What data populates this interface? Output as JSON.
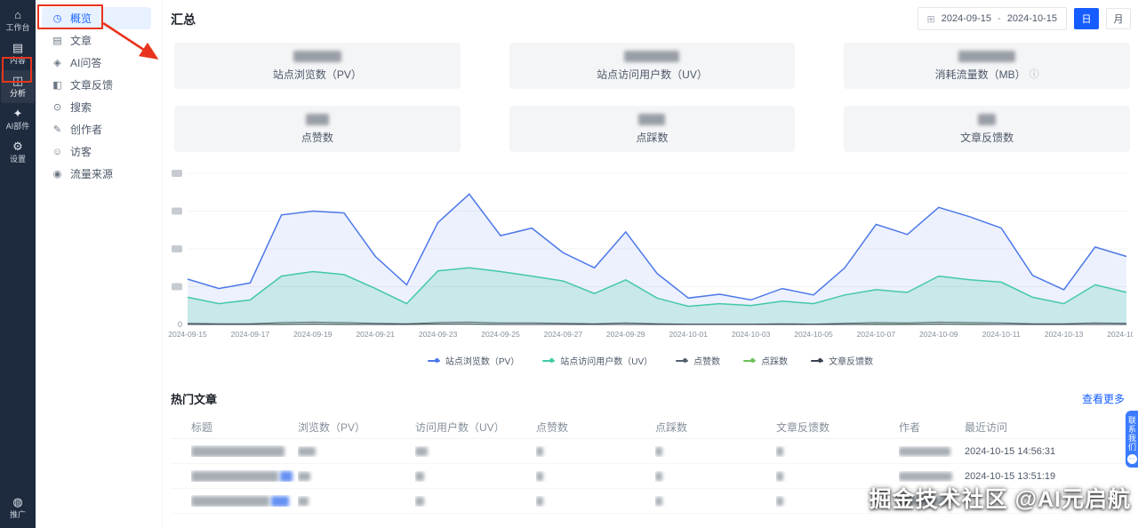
{
  "colors": {
    "accent": "#165dff",
    "annotation": "#e8341c",
    "rail_bg": "#1e2a3d",
    "card_bg": "#f4f5f7"
  },
  "left_rail": {
    "items": [
      {
        "label": "工作台",
        "icon": "workbench-icon"
      },
      {
        "label": "内容",
        "icon": "content-icon"
      },
      {
        "label": "分析",
        "icon": "analysis-icon"
      },
      {
        "label": "AI部件",
        "icon": "ai-parts-icon"
      },
      {
        "label": "设置",
        "icon": "settings-icon"
      }
    ],
    "bottom": {
      "label": "推广",
      "icon": "promotion-icon"
    }
  },
  "sidebar": {
    "items": [
      {
        "label": "概览",
        "icon": "overview-icon"
      },
      {
        "label": "文章",
        "icon": "article-icon"
      },
      {
        "label": "AI问答",
        "icon": "ai-qa-icon"
      },
      {
        "label": "文章反馈",
        "icon": "feedback-icon"
      },
      {
        "label": "搜索",
        "icon": "search-icon"
      },
      {
        "label": "创作者",
        "icon": "creator-icon"
      },
      {
        "label": "访客",
        "icon": "visitor-icon"
      },
      {
        "label": "流量来源",
        "icon": "traffic-source-icon"
      }
    ]
  },
  "header": {
    "title": "汇总",
    "date_start": "2024-09-15",
    "range_sep": "-",
    "date_end": "2024-10-15",
    "day_label": "日",
    "month_label": "月"
  },
  "stat_cards": [
    {
      "label": "站点浏览数（PV）"
    },
    {
      "label": "站点访问用户数（UV）"
    },
    {
      "label": "消耗流量数（MB）",
      "has_info": true,
      "info_icon": "ⓘ"
    },
    {
      "label": "点赞数"
    },
    {
      "label": "点踩数"
    },
    {
      "label": "文章反馈数"
    }
  ],
  "chart_data": {
    "type": "line",
    "title": "",
    "grid": true,
    "legend_position": "bottom",
    "ylim": [
      0,
      400
    ],
    "y_ticks": [
      0,
      100,
      200,
      300,
      400
    ],
    "y_labels_redacted": true,
    "x": [
      "2024-09-15",
      "2024-09-16",
      "2024-09-17",
      "2024-09-18",
      "2024-09-19",
      "2024-09-20",
      "2024-09-21",
      "2024-09-22",
      "2024-09-23",
      "2024-09-24",
      "2024-09-25",
      "2024-09-26",
      "2024-09-27",
      "2024-09-28",
      "2024-09-29",
      "2024-09-30",
      "2024-10-01",
      "2024-10-02",
      "2024-10-03",
      "2024-10-04",
      "2024-10-05",
      "2024-10-06",
      "2024-10-07",
      "2024-10-08",
      "2024-10-09",
      "2024-10-10",
      "2024-10-11",
      "2024-10-12",
      "2024-10-13",
      "2024-10-14",
      "2024-10-15"
    ],
    "x_tick_every": 2,
    "series": [
      {
        "name": "站点浏览数（PV）",
        "color": "#4c78e8",
        "fill": "rgba(76,120,232,0.10)",
        "values": [
          120,
          95,
          110,
          290,
          300,
          295,
          180,
          105,
          270,
          345,
          235,
          255,
          190,
          150,
          245,
          135,
          70,
          80,
          65,
          95,
          78,
          150,
          265,
          238,
          310,
          285,
          255,
          130,
          92,
          205,
          180
        ]
      },
      {
        "name": "站点访问用户数（UV）",
        "color": "#44c9a6",
        "fill": "rgba(68,201,166,0.22)",
        "values": [
          72,
          55,
          65,
          128,
          140,
          132,
          95,
          55,
          142,
          150,
          140,
          128,
          115,
          82,
          118,
          70,
          48,
          55,
          50,
          62,
          55,
          78,
          92,
          85,
          128,
          118,
          112,
          72,
          55,
          105,
          85
        ]
      },
      {
        "name": "点赞数",
        "color": "#55606e",
        "values": [
          3,
          2,
          2,
          5,
          6,
          5,
          3,
          2,
          5,
          6,
          4,
          4,
          3,
          2,
          4,
          2,
          1,
          1,
          1,
          2,
          1,
          3,
          5,
          4,
          6,
          5,
          4,
          2,
          2,
          4,
          3
        ]
      },
      {
        "name": "点踩数",
        "color": "#6ec25a",
        "values": [
          0,
          0,
          0,
          1,
          1,
          1,
          0,
          0,
          1,
          1,
          0,
          0,
          0,
          0,
          0,
          0,
          0,
          0,
          0,
          0,
          0,
          0,
          1,
          1,
          1,
          1,
          0,
          0,
          0,
          0,
          0
        ]
      },
      {
        "name": "文章反馈数",
        "color": "#3a4250",
        "values": [
          0,
          0,
          0,
          0,
          1,
          0,
          0,
          0,
          1,
          1,
          0,
          0,
          0,
          0,
          0,
          0,
          0,
          0,
          0,
          0,
          0,
          0,
          0,
          0,
          1,
          0,
          0,
          0,
          0,
          0,
          0
        ]
      }
    ]
  },
  "hot_articles": {
    "title": "热门文章",
    "view_more": "查看更多",
    "columns": [
      "标题",
      "浏览数（PV）",
      "访问用户数（UV）",
      "点赞数",
      "点踩数",
      "文章反馈数",
      "作者",
      "最近访问"
    ],
    "rows": [
      {
        "title_redacted": true,
        "last_visit": "2024-10-15 14:56:31"
      },
      {
        "title_redacted": true,
        "last_visit": "2024-10-15 13:51:19"
      },
      {
        "title_redacted": true,
        "last_visit": ""
      }
    ]
  },
  "contact_tab": {
    "label": "联系我们"
  },
  "watermark": "掘金技术社区 @AI元启航"
}
